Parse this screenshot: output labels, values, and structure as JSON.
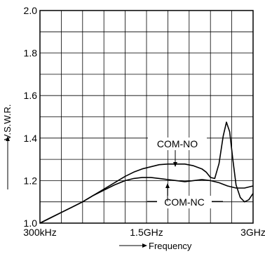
{
  "chart_data": {
    "type": "line",
    "title": "",
    "xlabel": "Frequency",
    "ylabel": "V.S.W.R.",
    "x_unit": "fraction of span",
    "x_ticks": [
      {
        "label": "300kHz",
        "x": 0.0
      },
      {
        "label": "1.5GHz",
        "x": 0.5
      },
      {
        "label": "3GHz",
        "x": 1.0
      }
    ],
    "y_ticks": [
      "1.0",
      "1.2",
      "1.4",
      "1.6",
      "1.8",
      "2.0"
    ],
    "ylim": [
      1.0,
      2.0
    ],
    "xlim": [
      0.0,
      1.0
    ],
    "grid": true,
    "grid_x_divisions": 10,
    "grid_y_divisions": 10,
    "series": [
      {
        "name": "COM-NO",
        "x": [
          0.0,
          0.05,
          0.1,
          0.15,
          0.2,
          0.25,
          0.3,
          0.35,
          0.4,
          0.44,
          0.48,
          0.52,
          0.56,
          0.6,
          0.64,
          0.68,
          0.72,
          0.76,
          0.78,
          0.8,
          0.82,
          0.84,
          0.86,
          0.875,
          0.89,
          0.905,
          0.92,
          0.94,
          0.96,
          0.98,
          1.0
        ],
        "y": [
          1.0,
          1.025,
          1.05,
          1.075,
          1.1,
          1.13,
          1.16,
          1.19,
          1.22,
          1.24,
          1.255,
          1.265,
          1.275,
          1.278,
          1.278,
          1.278,
          1.27,
          1.255,
          1.24,
          1.215,
          1.21,
          1.28,
          1.41,
          1.475,
          1.43,
          1.3,
          1.18,
          1.12,
          1.1,
          1.11,
          1.14
        ]
      },
      {
        "name": "COM-NC",
        "x": [
          0.0,
          0.05,
          0.1,
          0.15,
          0.2,
          0.25,
          0.3,
          0.35,
          0.4,
          0.44,
          0.48,
          0.52,
          0.56,
          0.6,
          0.64,
          0.68,
          0.72,
          0.76,
          0.8,
          0.84,
          0.88,
          0.92,
          0.96,
          1.0
        ],
        "y": [
          1.0,
          1.025,
          1.05,
          1.075,
          1.1,
          1.13,
          1.155,
          1.18,
          1.2,
          1.21,
          1.215,
          1.215,
          1.21,
          1.205,
          1.2,
          1.195,
          1.2,
          1.205,
          1.2,
          1.19,
          1.175,
          1.165,
          1.165,
          1.175
        ]
      }
    ]
  }
}
